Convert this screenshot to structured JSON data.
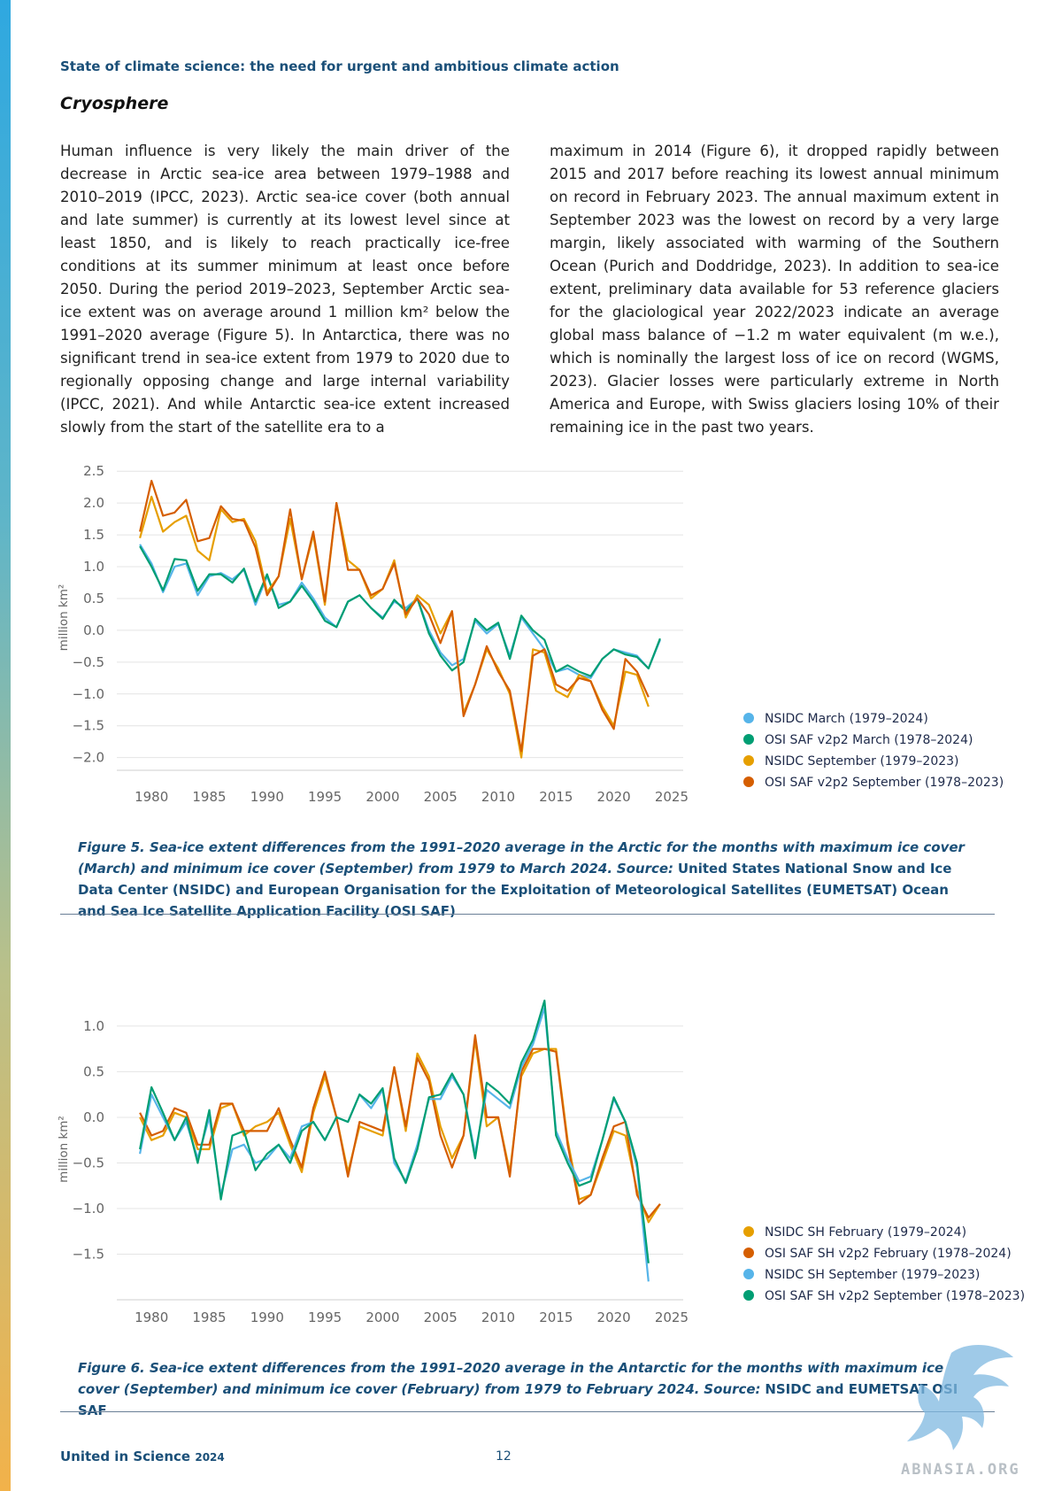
{
  "header": {
    "running_title": "State of climate science: the need for urgent and ambitious climate action",
    "section_title": "Cryosphere"
  },
  "body": {
    "left_text": "Human influence is very likely the main driver of the decrease in Arctic sea-ice area between 1979–1988 and 2010–2019 (IPCC, 2023). Arctic sea-ice cover (both annual and late summer) is currently at its lowest level since at least 1850, and is likely to reach practically ice-free conditions at its summer minimum at least once before 2050. During the period 2019–2023, September Arctic sea-ice extent was on average around 1 million km² below the 1991–2020 average (Figure 5). In Antarctica, there was no significant trend in sea-ice extent from 1979 to 2020 due to regionally opposing change and large internal variability (IPCC, 2021). And while Antarctic sea-ice extent increased slowly from the start of the satellite era to a",
    "right_text": "maximum in 2014 (Figure 6), it dropped rapidly between 2015 and 2017 before reaching its lowest annual minimum on record in February 2023. The annual maximum extent in September 2023 was the lowest on record by a very large margin, likely associated with warming of the Southern Ocean (Purich and Doddridge, 2023). In addition to sea-ice extent, preliminary data available for 53 reference glaciers for the glaciological year 2022/2023 indicate an average global mass balance of −1.2 m water equivalent (m w.e.), which is nominally the largest loss of ice on record (WGMS, 2023). Glacier losses were particularly extreme in North America and Europe, with Swiss glaciers losing 10% of their remaining ice in the past two years."
  },
  "captions": {
    "fig5_bold": "Figure 5. Sea-ice extent differences from the 1991–2020 average in the Arctic for the months with maximum ice cover (March) and minimum ice cover (September) from 1979 to March 2024.",
    "fig5_source_label": "Source:",
    "fig5_source": "United States National Snow and Ice Data Center (NSIDC) and European Organisation for the Exploitation of Meteorological Satellites (EUMETSAT) Ocean and Sea Ice Satellite Application Facility (OSI SAF)",
    "fig6_bold": "Figure 6. Sea-ice extent differences from the 1991–2020 average in the Antarctic for the months with maximum ice cover (September) and minimum ice cover (February) from 1979 to February 2024.",
    "fig6_source_label": "Source:",
    "fig6_source": "NSIDC and EUMETSAT OSI SAF"
  },
  "footer": {
    "publication": "United in Science",
    "year": "2024",
    "page_number": "12",
    "watermark": "ABNASIA.ORG"
  },
  "chart_data": [
    {
      "type": "line",
      "ylabel": "million km²",
      "ylim": [
        -2.2,
        2.6
      ],
      "xlim": [
        1977,
        2026
      ],
      "yticks": [
        "2.5",
        "2.0",
        "1.5",
        "1.0",
        "0.5",
        "0.0",
        "−0.5",
        "−1.0",
        "−1.5",
        "−2.0"
      ],
      "ytick_values": [
        2.5,
        2.0,
        1.5,
        1.0,
        0.5,
        0.0,
        -0.5,
        -1.0,
        -1.5,
        -2.0
      ],
      "xticks": [
        "1980",
        "1985",
        "1990",
        "1995",
        "2000",
        "2005",
        "2010",
        "2015",
        "2020",
        "2025"
      ],
      "xtick_values": [
        1980,
        1985,
        1990,
        1995,
        2000,
        2005,
        2010,
        2015,
        2020,
        2025
      ],
      "grid": true,
      "legend_position": "bottom-right",
      "series": [
        {
          "name": "NSIDC March (1979–2024)",
          "color": "#56b4e9",
          "x_start": 1979,
          "values": [
            1.35,
            1.05,
            0.6,
            1.0,
            1.05,
            0.55,
            0.85,
            0.9,
            0.8,
            0.95,
            0.4,
            0.85,
            0.4,
            0.45,
            0.75,
            0.5,
            0.2,
            0.05,
            0.45,
            0.55,
            0.35,
            0.2,
            0.45,
            0.35,
            0.5,
            0.0,
            -0.35,
            -0.55,
            -0.45,
            0.15,
            -0.05,
            0.1,
            -0.4,
            0.2,
            -0.05,
            -0.3,
            -0.65,
            -0.6,
            -0.7,
            -0.75,
            -0.45,
            -0.3,
            -0.35,
            -0.4,
            -0.6,
            -0.15
          ]
        },
        {
          "name": "OSI SAF v2p2 March (1978–2024)",
          "color": "#009e73",
          "x_start": 1979,
          "values": [
            1.32,
            1.0,
            0.63,
            1.12,
            1.1,
            0.62,
            0.88,
            0.88,
            0.75,
            0.97,
            0.45,
            0.88,
            0.35,
            0.45,
            0.7,
            0.45,
            0.15,
            0.05,
            0.45,
            0.55,
            0.35,
            0.18,
            0.48,
            0.3,
            0.5,
            -0.05,
            -0.4,
            -0.63,
            -0.5,
            0.18,
            0.0,
            0.12,
            -0.45,
            0.23,
            0.0,
            -0.15,
            -0.65,
            -0.55,
            -0.65,
            -0.72,
            -0.45,
            -0.3,
            -0.38,
            -0.42,
            -0.6,
            -0.13
          ]
        },
        {
          "name": "NSIDC September (1979–2023)",
          "color": "#e69f00",
          "x_start": 1979,
          "values": [
            1.45,
            2.1,
            1.55,
            1.7,
            1.8,
            1.25,
            1.1,
            1.9,
            1.7,
            1.75,
            1.4,
            0.6,
            0.85,
            1.75,
            0.8,
            1.5,
            0.4,
            2.0,
            1.1,
            0.95,
            0.5,
            0.65,
            1.1,
            0.2,
            0.55,
            0.4,
            -0.05,
            0.3,
            -1.3,
            -0.85,
            -0.3,
            -0.6,
            -1.0,
            -2.0,
            -0.3,
            -0.35,
            -0.95,
            -1.05,
            -0.7,
            -0.8,
            -1.2,
            -1.5,
            -0.65,
            -0.7,
            -1.2
          ]
        },
        {
          "name": "OSI SAF v2p2 September (1978–2023)",
          "color": "#d55e00",
          "x_start": 1979,
          "values": [
            1.55,
            2.35,
            1.8,
            1.85,
            2.05,
            1.4,
            1.45,
            1.95,
            1.75,
            1.72,
            1.3,
            0.55,
            0.85,
            1.9,
            0.8,
            1.55,
            0.45,
            2.0,
            0.95,
            0.95,
            0.55,
            0.65,
            1.05,
            0.25,
            0.5,
            0.25,
            -0.2,
            0.3,
            -1.35,
            -0.85,
            -0.25,
            -0.65,
            -0.95,
            -1.9,
            -0.4,
            -0.3,
            -0.85,
            -0.95,
            -0.75,
            -0.8,
            -1.25,
            -1.55,
            -0.45,
            -0.65,
            -1.05
          ]
        }
      ]
    },
    {
      "type": "line",
      "ylabel": "million km²",
      "ylim": [
        -2.0,
        1.3
      ],
      "xlim": [
        1977,
        2026
      ],
      "yticks": [
        "1.0",
        "0.5",
        "0.0",
        "−0.5",
        "−1.0",
        "−1.5"
      ],
      "ytick_values": [
        1.0,
        0.5,
        0.0,
        -0.5,
        -1.0,
        -1.5
      ],
      "xticks": [
        "1980",
        "1985",
        "1990",
        "1995",
        "2000",
        "2005",
        "2010",
        "2015",
        "2020",
        "2025"
      ],
      "xtick_values": [
        1980,
        1985,
        1990,
        1995,
        2000,
        2005,
        2010,
        2015,
        2020,
        2025
      ],
      "grid": true,
      "legend_position": "bottom-right",
      "series": [
        {
          "name": "NSIDC SH February (1979–2024)",
          "color": "#e69f00",
          "x_start": 1979,
          "values": [
            0.0,
            -0.25,
            -0.2,
            0.05,
            0.0,
            -0.35,
            -0.35,
            0.1,
            0.15,
            -0.2,
            -0.1,
            -0.05,
            0.05,
            -0.3,
            -0.6,
            0.05,
            0.45,
            0.0,
            -0.6,
            -0.1,
            -0.15,
            -0.2,
            0.55,
            -0.15,
            0.7,
            0.45,
            -0.1,
            -0.45,
            -0.2,
            0.85,
            -0.1,
            0.0,
            -0.6,
            0.45,
            0.7,
            0.75,
            0.75,
            -0.25,
            -0.9,
            -0.85,
            -0.5,
            -0.15,
            -0.2,
            -0.8,
            -1.15,
            -0.95
          ]
        },
        {
          "name": "OSI SAF SH v2p2 February (1978–2024)",
          "color": "#d55e00",
          "x_start": 1979,
          "values": [
            0.05,
            -0.2,
            -0.15,
            0.1,
            0.05,
            -0.3,
            -0.3,
            0.15,
            0.15,
            -0.15,
            -0.15,
            -0.15,
            0.1,
            -0.25,
            -0.55,
            0.1,
            0.5,
            0.0,
            -0.65,
            -0.05,
            -0.1,
            -0.15,
            0.55,
            -0.1,
            0.65,
            0.4,
            -0.2,
            -0.55,
            -0.2,
            0.9,
            0.0,
            0.0,
            -0.65,
            0.5,
            0.75,
            0.75,
            0.72,
            -0.3,
            -0.95,
            -0.85,
            -0.45,
            -0.1,
            -0.05,
            -0.85,
            -1.1,
            -0.95
          ]
        },
        {
          "name": "NSIDC SH September (1979–2023)",
          "color": "#56b4e9",
          "x_start": 1979,
          "values": [
            -0.4,
            0.25,
            0.0,
            -0.25,
            -0.05,
            -0.45,
            0.0,
            -0.85,
            -0.35,
            -0.3,
            -0.5,
            -0.45,
            -0.3,
            -0.45,
            -0.1,
            -0.05,
            -0.25,
            0.0,
            -0.05,
            0.25,
            0.1,
            0.3,
            -0.5,
            -0.7,
            -0.3,
            0.2,
            0.2,
            0.45,
            0.25,
            -0.4,
            0.3,
            0.2,
            0.1,
            0.55,
            0.8,
            1.2,
            -0.15,
            -0.45,
            -0.7,
            -0.65,
            -0.25,
            0.2,
            -0.05,
            -0.55,
            -1.8
          ]
        },
        {
          "name": "OSI SAF SH v2p2 September (1978–2023)",
          "color": "#009e73",
          "x_start": 1979,
          "values": [
            -0.35,
            0.33,
            0.05,
            -0.25,
            0.0,
            -0.5,
            0.08,
            -0.9,
            -0.2,
            -0.15,
            -0.58,
            -0.4,
            -0.3,
            -0.5,
            -0.15,
            -0.05,
            -0.25,
            0.0,
            -0.05,
            0.25,
            0.15,
            0.32,
            -0.45,
            -0.72,
            -0.35,
            0.22,
            0.25,
            0.48,
            0.25,
            -0.45,
            0.38,
            0.28,
            0.15,
            0.6,
            0.85,
            1.28,
            -0.2,
            -0.5,
            -0.75,
            -0.7,
            -0.25,
            0.22,
            -0.05,
            -0.5,
            -1.6
          ]
        }
      ]
    }
  ]
}
